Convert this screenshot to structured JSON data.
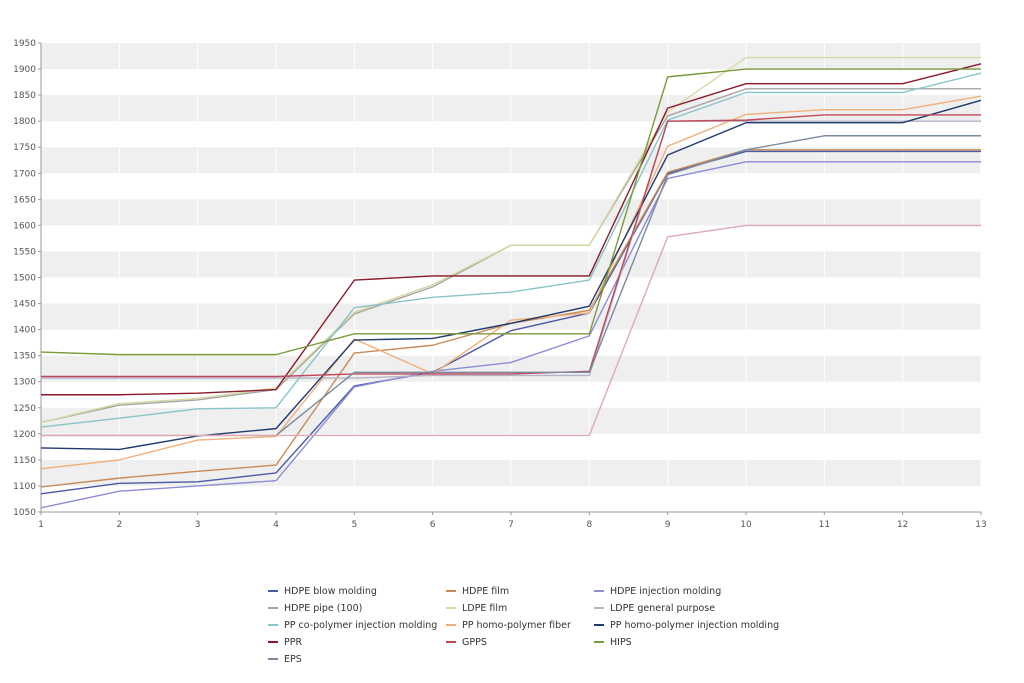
{
  "chart_data": {
    "type": "line",
    "title": "",
    "xlabel": "",
    "ylabel": "",
    "x": [
      1,
      2,
      3,
      4,
      5,
      6,
      7,
      8,
      9,
      10,
      11,
      12,
      13
    ],
    "ylim": [
      1050,
      1950
    ],
    "yticks": [
      1050,
      1100,
      1150,
      1200,
      1250,
      1300,
      1350,
      1400,
      1450,
      1500,
      1550,
      1600,
      1650,
      1700,
      1750,
      1800,
      1850,
      1900,
      1950
    ],
    "grid": "horizontal bands",
    "legend_position": "bottom",
    "series": [
      {
        "name": "HDPE blow molding",
        "color": "#4a5aa8",
        "values": [
          1085,
          1105,
          1108,
          1125,
          1292,
          1318,
          1398,
          1432,
          1700,
          1742,
          1742,
          1742,
          1742
        ]
      },
      {
        "name": "HDPE film",
        "color": "#c98a55",
        "values": [
          1098,
          1115,
          1128,
          1140,
          1355,
          1370,
          1412,
          1437,
          1702,
          1745,
          1745,
          1745,
          1745
        ]
      },
      {
        "name": "HDPE injection molding",
        "color": "#8c8cd8",
        "values": [
          1058,
          1090,
          1100,
          1110,
          1290,
          1320,
          1337,
          1388,
          1690,
          1722,
          1722,
          1722,
          1722
        ]
      },
      {
        "name": "HDPE pipe (100)",
        "color": "#a4a4a4",
        "values": [
          1222,
          1255,
          1265,
          1285,
          1430,
          1482,
          1562,
          1562,
          1810,
          1862,
          1862,
          1862,
          1862
        ]
      },
      {
        "name": "LDPE film",
        "color": "#d8d8a0",
        "values": [
          1222,
          1258,
          1268,
          1288,
          1433,
          1486,
          1562,
          1562,
          1818,
          1922,
          1922,
          1922,
          1922
        ]
      },
      {
        "name": "LDPE general purpose",
        "color": "#b4b4c8",
        "values": [
          1307,
          1307,
          1307,
          1307,
          1307,
          1312,
          1312,
          1312,
          1800,
          1800,
          1800,
          1800,
          1800
        ]
      },
      {
        "name": "PP co-polymer injection molding",
        "color": "#88c4c8",
        "values": [
          1213,
          1230,
          1248,
          1250,
          1442,
          1462,
          1472,
          1495,
          1802,
          1855,
          1855,
          1855,
          1892
        ]
      },
      {
        "name": "PP homo-polymer fiber",
        "color": "#f0b07a",
        "values": [
          1133,
          1150,
          1188,
          1195,
          1382,
          1315,
          1418,
          1432,
          1752,
          1813,
          1822,
          1822,
          1848
        ]
      },
      {
        "name": "PP homo-polymer injection molding",
        "color": "#1e3a6e",
        "values": [
          1173,
          1170,
          1196,
          1210,
          1380,
          1383,
          1412,
          1445,
          1735,
          1797,
          1797,
          1797,
          1840
        ]
      },
      {
        "name": "PPR",
        "color": "#8b1a2b",
        "values": [
          1275,
          1275,
          1278,
          1285,
          1495,
          1503,
          1503,
          1503,
          1825,
          1872,
          1872,
          1872,
          1910
        ]
      },
      {
        "name": "GPPS",
        "color": "#c04858",
        "values": [
          1310,
          1310,
          1310,
          1310,
          1315,
          1315,
          1315,
          1320,
          1800,
          1802,
          1812,
          1812,
          1812
        ]
      },
      {
        "name": "HIPS",
        "color": "#7a9a3a",
        "values": [
          1357,
          1352,
          1352,
          1352,
          1392,
          1392,
          1392,
          1392,
          1885,
          1900,
          1900,
          1900,
          1900
        ]
      },
      {
        "name": "EPS",
        "color": "#7a8aa0",
        "values": [
          1197,
          1197,
          1197,
          1197,
          1318,
          1318,
          1318,
          1318,
          1697,
          1745,
          1772,
          1772,
          1772
        ]
      },
      {
        "name": "",
        "color": "#e0a8b0",
        "values": [
          1197,
          1197,
          1197,
          1197,
          1197,
          1197,
          1197,
          1197,
          1578,
          1600,
          1600,
          1600,
          1600
        ]
      }
    ]
  }
}
